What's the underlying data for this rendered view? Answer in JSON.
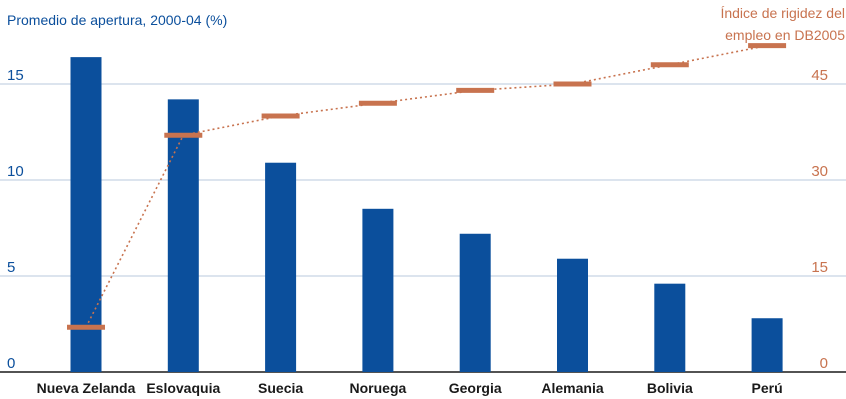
{
  "chart_data": {
    "type": "bar",
    "title_left": "Promedio de apertura, 2000-04 (%)",
    "title_right": [
      "Índice de rigidez del",
      "empleo en DB2005"
    ],
    "categories": [
      "Nueva Zelanda",
      "Eslovaquia",
      "Suecia",
      "Noruega",
      "Georgia",
      "Alemania",
      "Bolivia",
      "Perú"
    ],
    "bar_values": [
      16.4,
      14.2,
      10.9,
      8.5,
      7.2,
      5.9,
      4.6,
      2.8
    ],
    "line_values": [
      7,
      37,
      40,
      42,
      44,
      45,
      48,
      51
    ],
    "y_left": {
      "ticks": [
        0,
        5,
        10,
        15
      ],
      "range": [
        0,
        19.2
      ]
    },
    "y_right": {
      "ticks": [
        0,
        15,
        30,
        45
      ],
      "range": [
        0,
        57.6
      ]
    },
    "colors": {
      "bar": "#0b4f9c",
      "line": "#c8734f",
      "grid": "#b9c9de",
      "left_axis": "#0b4f9c",
      "right_axis": "#c8734f"
    }
  }
}
